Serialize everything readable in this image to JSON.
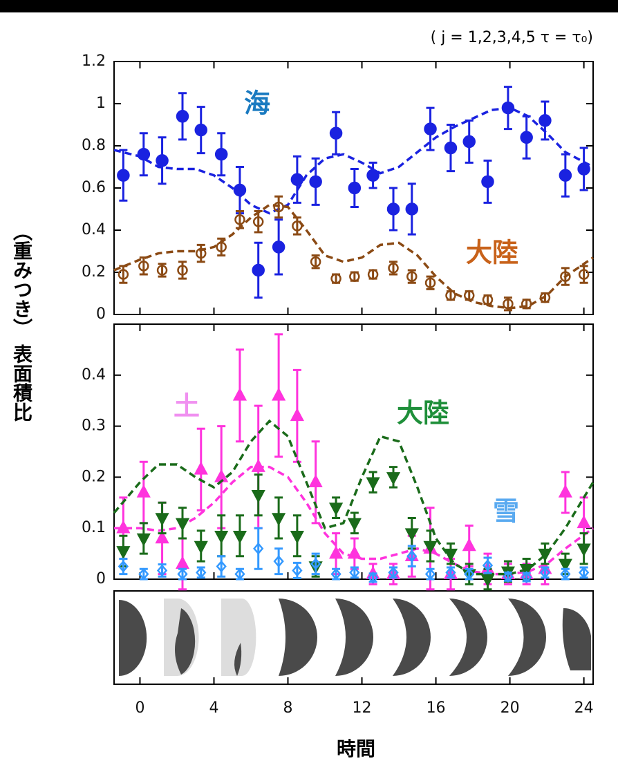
{
  "chart_data": [
    {
      "type": "line",
      "annotation": "( j = 1,2,3,4,5   τ = τ₀)",
      "ylim": [
        0,
        1.2
      ],
      "yticks": [
        0,
        0.2,
        0.4,
        0.6,
        0.8,
        1,
        1.2
      ],
      "xlim": [
        -1.4,
        24.5
      ],
      "x": [
        -0.9,
        0.2,
        1.2,
        2.3,
        3.3,
        4.4,
        5.4,
        6.4,
        7.5,
        8.5,
        9.5,
        10.6,
        11.6,
        12.6,
        13.7,
        14.7,
        15.7,
        16.8,
        17.8,
        18.8,
        19.9,
        20.9,
        21.9,
        23.0,
        24.0
      ],
      "model_x": [
        -1.4,
        0,
        1,
        2,
        3,
        4,
        5,
        6,
        7,
        8,
        9,
        10,
        11,
        12,
        13,
        14,
        15,
        16,
        17,
        18,
        19,
        20,
        21,
        22,
        23,
        24.5
      ],
      "series": [
        {
          "name": "海",
          "color": "#1a22e0",
          "label_color": "#1a7ac0",
          "marker": "circle-filled",
          "values": [
            0.66,
            0.76,
            0.73,
            0.94,
            0.875,
            0.76,
            0.59,
            0.21,
            0.32,
            0.64,
            0.63,
            0.86,
            0.6,
            0.66,
            0.5,
            0.5,
            0.88,
            0.79,
            0.82,
            0.63,
            0.98,
            0.84,
            0.92,
            0.66,
            0.69
          ],
          "errors": [
            0.12,
            0.1,
            0.11,
            0.11,
            0.11,
            0.1,
            0.11,
            0.13,
            0.13,
            0.11,
            0.11,
            0.1,
            0.09,
            0.06,
            0.1,
            0.12,
            0.1,
            0.11,
            0.1,
            0.1,
            0.1,
            0.1,
            0.09,
            0.1,
            0.1
          ],
          "model_values": [
            0.78,
            0.75,
            0.7,
            0.69,
            0.69,
            0.66,
            0.6,
            0.52,
            0.48,
            0.52,
            0.66,
            0.74,
            0.76,
            0.72,
            0.67,
            0.7,
            0.77,
            0.84,
            0.89,
            0.93,
            0.97,
            0.98,
            0.94,
            0.86,
            0.77,
            0.7
          ]
        },
        {
          "name": "大陸",
          "color": "#8b4a14",
          "label_color": "#c8621a",
          "marker": "circle-open",
          "values": [
            0.19,
            0.23,
            0.21,
            0.21,
            0.29,
            0.32,
            0.45,
            0.44,
            0.51,
            0.42,
            0.25,
            0.17,
            0.18,
            0.19,
            0.22,
            0.18,
            0.15,
            0.09,
            0.09,
            0.07,
            0.05,
            0.05,
            0.08,
            0.18,
            0.19
          ],
          "errors": [
            0.04,
            0.04,
            0.03,
            0.04,
            0.04,
            0.04,
            0.04,
            0.05,
            0.05,
            0.04,
            0.03,
            0.02,
            0.02,
            0.02,
            0.03,
            0.03,
            0.03,
            0.02,
            0.02,
            0.02,
            0.03,
            0.02,
            0.02,
            0.04,
            0.04
          ],
          "model_values": [
            0.21,
            0.26,
            0.29,
            0.3,
            0.3,
            0.32,
            0.38,
            0.46,
            0.52,
            0.51,
            0.4,
            0.28,
            0.25,
            0.27,
            0.33,
            0.34,
            0.28,
            0.18,
            0.1,
            0.06,
            0.04,
            0.03,
            0.04,
            0.09,
            0.18,
            0.27
          ]
        }
      ]
    },
    {
      "type": "line",
      "ylim": [
        0,
        0.5
      ],
      "yticks": [
        0,
        0.1,
        0.2,
        0.3,
        0.4
      ],
      "xlim": [
        -1.4,
        24.5
      ],
      "xticks": [
        0,
        4,
        8,
        12,
        16,
        20,
        24
      ],
      "xlabel": "時間",
      "ylabel": "（重みつき） 表面積比",
      "x": [
        -0.9,
        0.2,
        1.2,
        2.3,
        3.3,
        4.4,
        5.4,
        6.4,
        7.5,
        8.5,
        9.5,
        10.6,
        11.6,
        12.6,
        13.7,
        14.7,
        15.7,
        16.8,
        17.8,
        18.8,
        19.9,
        20.9,
        21.9,
        23.0,
        24.0
      ],
      "model_x": [
        -1.4,
        0,
        1,
        2,
        3,
        4,
        5,
        6,
        7,
        8,
        9,
        10,
        11,
        12,
        13,
        14,
        15,
        16,
        17,
        18,
        19,
        20,
        21,
        22,
        23,
        24.5
      ],
      "series": [
        {
          "name": "土",
          "color": "#ff33dd",
          "label_color": "#f090f0",
          "marker": "triangle-up",
          "values": [
            0.1,
            0.17,
            0.08,
            0.03,
            0.215,
            0.2,
            0.36,
            0.22,
            0.36,
            0.32,
            0.19,
            0.05,
            0.05,
            0.01,
            0.01,
            0.045,
            0.06,
            0.01,
            0.065,
            0.02,
            0.01,
            0.01,
            0.02,
            0.17,
            0.11
          ],
          "errors": [
            0.06,
            0.06,
            0.07,
            0.05,
            0.08,
            0.1,
            0.09,
            0.12,
            0.12,
            0.09,
            0.08,
            0.04,
            0.03,
            0.02,
            0.02,
            0.04,
            0.08,
            0.03,
            0.04,
            0.03,
            0.02,
            0.02,
            0.03,
            0.04,
            0.05
          ],
          "model_values": [
            0.1,
            0.1,
            0.095,
            0.1,
            0.12,
            0.15,
            0.19,
            0.22,
            0.22,
            0.2,
            0.15,
            0.09,
            0.05,
            0.04,
            0.04,
            0.05,
            0.06,
            0.05,
            0.03,
            0.015,
            0.01,
            0.01,
            0.015,
            0.03,
            0.06,
            0.1
          ]
        },
        {
          "name": "大陸",
          "color": "#1a6b1a",
          "label_color": "#1f8f3a",
          "marker": "triangle-down",
          "values": [
            0.055,
            0.08,
            0.12,
            0.11,
            0.065,
            0.085,
            0.085,
            0.165,
            0.12,
            0.085,
            0.025,
            0.14,
            0.11,
            0.19,
            0.2,
            0.09,
            0.065,
            0.05,
            0.01,
            0,
            0.015,
            0.02,
            0.05,
            0.03,
            0.06
          ],
          "errors": [
            0.03,
            0.03,
            0.03,
            0.03,
            0.03,
            0.04,
            0.04,
            0.04,
            0.04,
            0.04,
            0.02,
            0.02,
            0.02,
            0.02,
            0.02,
            0.03,
            0.03,
            0.02,
            0.02,
            0.02,
            0.02,
            0.02,
            0.02,
            0.02,
            0.03
          ],
          "model_values": [
            0.13,
            0.19,
            0.225,
            0.225,
            0.2,
            0.18,
            0.21,
            0.27,
            0.31,
            0.28,
            0.19,
            0.1,
            0.11,
            0.2,
            0.28,
            0.27,
            0.18,
            0.08,
            0.03,
            0.01,
            0.01,
            0.01,
            0.02,
            0.05,
            0.1,
            0.19
          ]
        },
        {
          "name": "雪",
          "color": "#3399ff",
          "label_color": "#5aaaf0",
          "marker": "diamond-open",
          "values": [
            0.025,
            0.01,
            0.017,
            0.01,
            0.013,
            0.025,
            0.01,
            0.06,
            0.035,
            0.017,
            0.03,
            0.01,
            0.013,
            0.003,
            0.013,
            0.045,
            0.01,
            0.013,
            0.01,
            0.027,
            0.005,
            0.004,
            0.013,
            0.01,
            0.013
          ],
          "errors": [
            0.015,
            0.01,
            0.012,
            0.01,
            0.01,
            0.02,
            0.01,
            0.04,
            0.025,
            0.015,
            0.02,
            0.01,
            0.01,
            0.008,
            0.01,
            0.02,
            0.01,
            0.01,
            0.01,
            0.015,
            0.008,
            0.008,
            0.01,
            0.01,
            0.01
          ]
        }
      ]
    }
  ]
}
